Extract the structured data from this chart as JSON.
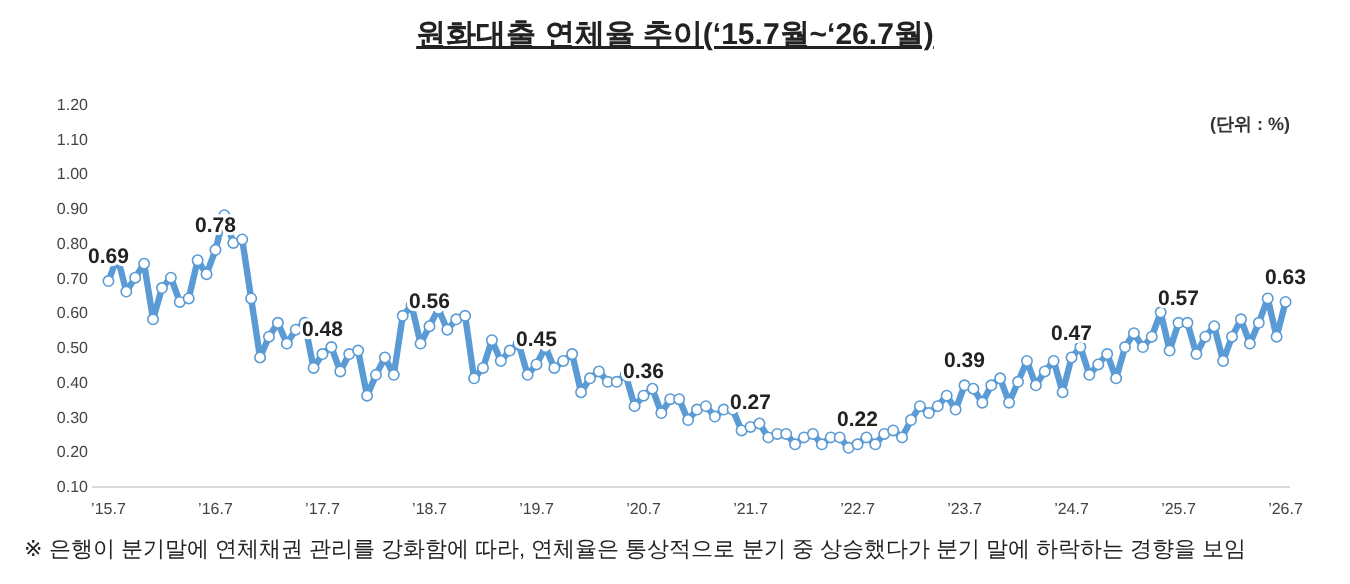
{
  "chart_data": {
    "type": "line",
    "title": "원화대출 연체율 추이(‘15.7월~‘26.7월)",
    "annotations": [
      "(단위 : %)",
      "※ 은행이 분기말에 연체채권 관리를 강화함에 따라, 연체율은 통상적으로 분기 중 상승했다가 분기 말에 하락하는 경향을 보임"
    ],
    "categories": [
      "’15.7",
      null,
      null,
      null,
      null,
      null,
      null,
      null,
      null,
      null,
      null,
      null,
      "’16.7",
      null,
      null,
      null,
      null,
      null,
      null,
      null,
      null,
      null,
      null,
      null,
      "’17.7",
      null,
      null,
      null,
      null,
      null,
      null,
      null,
      null,
      null,
      null,
      null,
      "’18.7",
      null,
      null,
      null,
      null,
      null,
      null,
      null,
      null,
      null,
      null,
      null,
      "’19.7",
      null,
      null,
      null,
      null,
      null,
      null,
      null,
      null,
      null,
      null,
      null,
      "’20.7",
      null,
      null,
      null,
      null,
      null,
      null,
      null,
      null,
      null,
      null,
      null,
      "’21.7",
      null,
      null,
      null,
      null,
      null,
      null,
      null,
      null,
      null,
      null,
      null,
      "’22.7",
      null,
      null,
      null,
      null,
      null,
      null,
      null,
      null,
      null,
      null,
      null,
      "’23.7",
      null,
      null,
      null,
      null,
      null,
      null,
      null,
      null,
      null,
      null,
      null,
      "’24.7",
      null,
      null,
      null,
      null,
      null,
      null,
      null,
      null,
      null,
      null,
      null,
      "’25.7",
      null,
      null,
      null,
      null,
      null,
      null,
      null,
      null,
      null,
      null,
      null,
      "’26.7"
    ],
    "series": [
      {
        "color": "#5b9bd5",
        "values": [
          0.69,
          0.76,
          0.66,
          0.7,
          0.74,
          0.58,
          0.67,
          0.7,
          0.63,
          0.64,
          0.75,
          0.71,
          0.78,
          0.88,
          0.8,
          0.81,
          0.64,
          0.47,
          0.53,
          0.57,
          0.51,
          0.55,
          0.57,
          0.44,
          0.48,
          0.5,
          0.43,
          0.48,
          0.49,
          0.36,
          0.42,
          0.47,
          0.42,
          0.59,
          0.62,
          0.51,
          0.56,
          0.61,
          0.55,
          0.58,
          0.59,
          0.41,
          0.44,
          0.52,
          0.46,
          0.49,
          0.51,
          0.42,
          0.45,
          0.5,
          0.44,
          0.46,
          0.48,
          0.37,
          0.41,
          0.43,
          0.4,
          0.4,
          0.42,
          0.33,
          0.36,
          0.38,
          0.31,
          0.35,
          0.35,
          0.29,
          0.32,
          0.33,
          0.3,
          0.32,
          0.32,
          0.26,
          0.27,
          0.28,
          0.24,
          0.25,
          0.25,
          0.22,
          0.24,
          0.25,
          0.22,
          0.24,
          0.24,
          0.21,
          0.22,
          0.24,
          0.22,
          0.25,
          0.26,
          0.24,
          0.29,
          0.33,
          0.31,
          0.33,
          0.36,
          0.32,
          0.39,
          0.38,
          0.34,
          0.39,
          0.41,
          0.34,
          0.4,
          0.46,
          0.39,
          0.43,
          0.46,
          0.37,
          0.47,
          0.5,
          0.42,
          0.45,
          0.48,
          0.41,
          0.5,
          0.54,
          0.5,
          0.53,
          0.6,
          0.49,
          0.57,
          0.57,
          0.48,
          0.53,
          0.56,
          0.46,
          0.53,
          0.58,
          0.51,
          0.57,
          0.64,
          0.53,
          0.63
        ],
        "value_labels": [
          "0.69",
          null,
          null,
          null,
          null,
          null,
          null,
          null,
          null,
          null,
          null,
          null,
          "0.78",
          null,
          null,
          null,
          null,
          null,
          null,
          null,
          null,
          null,
          null,
          null,
          "0.48",
          null,
          null,
          null,
          null,
          null,
          null,
          null,
          null,
          null,
          null,
          null,
          "0.56",
          null,
          null,
          null,
          null,
          null,
          null,
          null,
          null,
          null,
          null,
          null,
          "0.45",
          null,
          null,
          null,
          null,
          null,
          null,
          null,
          null,
          null,
          null,
          null,
          "0.36",
          null,
          null,
          null,
          null,
          null,
          null,
          null,
          null,
          null,
          null,
          null,
          "0.27",
          null,
          null,
          null,
          null,
          null,
          null,
          null,
          null,
          null,
          null,
          null,
          "0.22",
          null,
          null,
          null,
          null,
          null,
          null,
          null,
          null,
          null,
          null,
          null,
          "0.39",
          null,
          null,
          null,
          null,
          null,
          null,
          null,
          null,
          null,
          null,
          null,
          "0.47",
          null,
          null,
          null,
          null,
          null,
          null,
          null,
          null,
          null,
          null,
          null,
          "0.57",
          null,
          null,
          null,
          null,
          null,
          null,
          null,
          null,
          null,
          null,
          null,
          "0.63"
        ]
      }
    ],
    "ylim": [
      0.1,
      1.2
    ],
    "yticks": [
      {
        "value": 0.1,
        "label": "0.10"
      },
      {
        "value": 0.2,
        "label": "0.20"
      },
      {
        "value": 0.3,
        "label": "0.30"
      },
      {
        "value": 0.4,
        "label": "0.40"
      },
      {
        "value": 0.5,
        "label": "0.50"
      },
      {
        "value": 0.6,
        "label": "0.60"
      },
      {
        "value": 0.7,
        "label": "0.70"
      },
      {
        "value": 0.8,
        "label": "0.80"
      },
      {
        "value": 0.9,
        "label": "0.90"
      },
      {
        "value": 1.0,
        "label": "1.00"
      },
      {
        "value": 1.1,
        "label": "1.10"
      },
      {
        "value": 1.2,
        "label": "1.20"
      }
    ],
    "marker": "circle",
    "grid": false
  }
}
